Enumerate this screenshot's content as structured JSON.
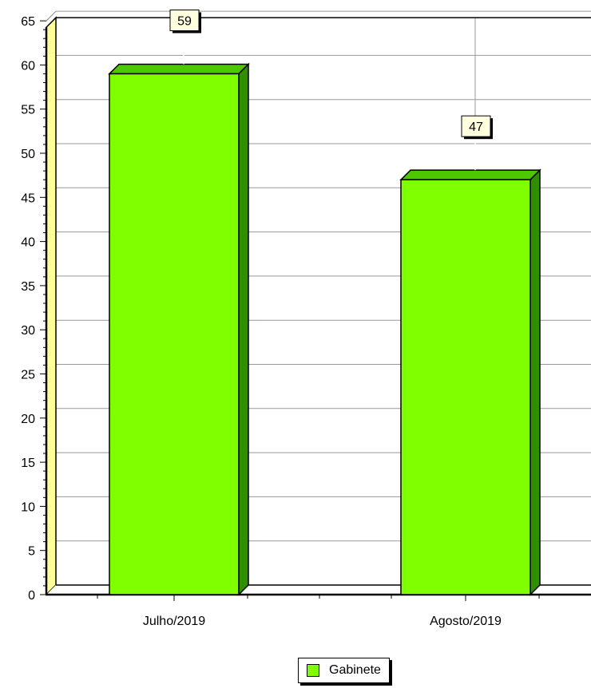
{
  "chart_data": {
    "type": "bar",
    "categories": [
      "Julho/2019",
      "Agosto/2019"
    ],
    "series": [
      {
        "name": "Gabinete",
        "values": [
          59,
          47
        ],
        "color": "#80ff00"
      }
    ],
    "data_labels": [
      "59",
      "47"
    ],
    "ylim": [
      0,
      65
    ],
    "yticks": [
      0,
      5,
      10,
      15,
      20,
      25,
      30,
      35,
      40,
      45,
      50,
      55,
      60,
      65
    ],
    "grid": true,
    "legend": "bottom-center",
    "colors": {
      "bar_front": "#80ff00",
      "bar_side": "#2f8f00",
      "bar_top": "#4dc700",
      "wall": "#ffff99",
      "label_bg": "#ffffe0"
    }
  }
}
